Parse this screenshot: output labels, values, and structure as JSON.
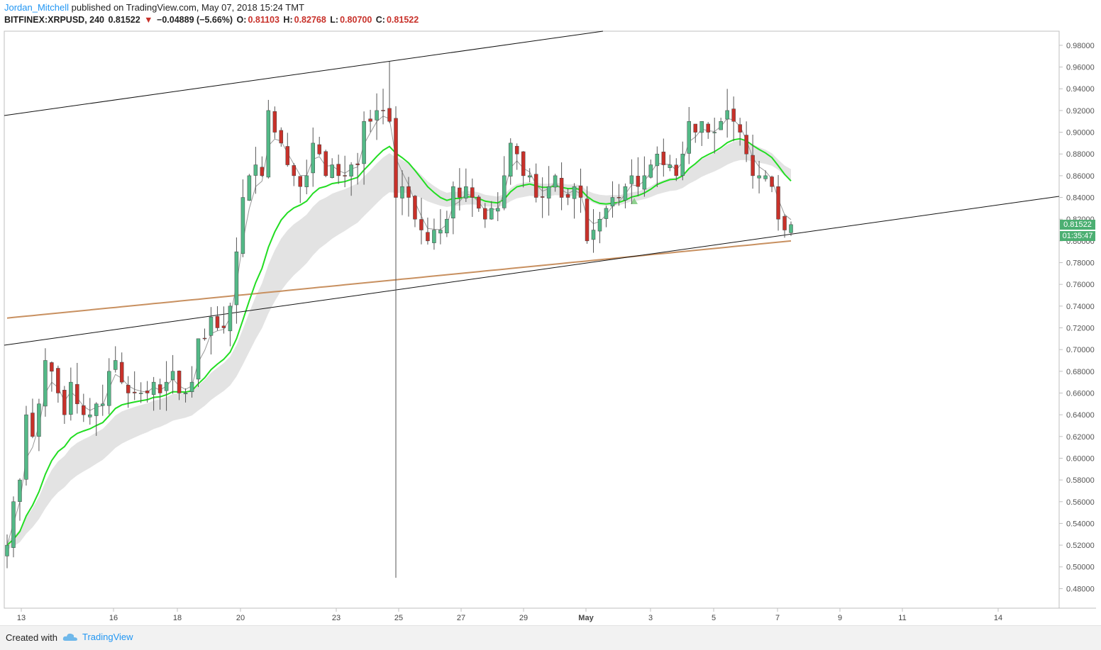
{
  "header": {
    "author": "Jordan_Mitchell",
    "published_text": "published on TradingView.com, May 07, 2018 15:24 TMT",
    "symbol": "BITFINEX:XRPUSD, 240",
    "last": "0.81522",
    "change": "−0.04889 (−5.66%)",
    "open_label": "O:",
    "open": "0.81103",
    "high_label": "H:",
    "high": "0.82768",
    "low_label": "L:",
    "low": "0.80700",
    "close_label": "C:",
    "close": "0.81522"
  },
  "price_tag": "0.81522",
  "time_tag": "01:35:47",
  "footer": {
    "created_with": "Created with",
    "brand": "TradingView"
  },
  "colors": {
    "up": "#53b987",
    "down": "#c8312a",
    "ema_green": "#22dd22",
    "ma_brown": "#c89060",
    "cloud": "#d9d9d9"
  },
  "chart_data": {
    "type": "candlestick",
    "y_ticks": [
      "0.98000",
      "0.96000",
      "0.94000",
      "0.92000",
      "0.90000",
      "0.88000",
      "0.86000",
      "0.84000",
      "0.82000",
      "0.80000",
      "0.78000",
      "0.76000",
      "0.74000",
      "0.72000",
      "0.70000",
      "0.68000",
      "0.66000",
      "0.64000",
      "0.62000",
      "0.60000",
      "0.58000",
      "0.56000",
      "0.54000",
      "0.52000",
      "0.50000",
      "0.48000"
    ],
    "ylim": [
      0.462,
      0.993
    ],
    "x_labels": [
      "13",
      "16",
      "18",
      "20",
      "23",
      "25",
      "27",
      "29",
      "May",
      "3",
      "5",
      "7",
      "9",
      "11",
      "14"
    ],
    "grid": false,
    "series": [
      {
        "name": "price",
        "values": [
          0.52,
          0.56,
          0.58,
          0.64,
          0.62,
          0.65,
          0.69,
          0.68,
          0.66,
          0.64,
          0.67,
          0.65,
          0.64,
          0.64,
          0.65,
          0.65,
          0.68,
          0.69,
          0.67,
          0.66,
          0.66,
          0.66,
          0.66,
          0.67,
          0.66,
          0.67,
          0.68,
          0.66,
          0.66,
          0.67,
          0.71,
          0.71,
          0.73,
          0.72,
          0.72,
          0.74,
          0.79,
          0.84,
          0.86,
          0.87,
          0.86,
          0.92,
          0.9,
          0.89,
          0.87,
          0.86,
          0.85,
          0.86,
          0.89,
          0.88,
          0.86,
          0.87,
          0.86,
          0.86,
          0.87,
          0.87,
          0.91,
          0.91,
          0.92,
          0.92,
          0.91,
          0.84,
          0.85,
          0.84,
          0.82,
          0.81,
          0.8,
          0.81,
          0.81,
          0.82,
          0.85,
          0.84,
          0.85,
          0.84,
          0.83,
          0.82,
          0.83,
          0.83,
          0.86,
          0.89,
          0.88,
          0.86,
          0.86,
          0.84,
          0.84,
          0.85,
          0.86,
          0.84,
          0.84,
          0.85,
          0.84,
          0.8,
          0.81,
          0.82,
          0.83,
          0.84,
          0.84,
          0.85,
          0.86,
          0.85,
          0.86,
          0.87,
          0.88,
          0.87,
          0.87,
          0.86,
          0.88,
          0.91,
          0.9,
          0.91,
          0.9,
          0.9,
          0.91,
          0.92,
          0.91,
          0.9,
          0.88,
          0.86,
          0.86,
          0.86,
          0.85,
          0.82,
          0.81,
          0.815
        ]
      }
    ],
    "reference_lines": [
      "upper channel",
      "lower channel"
    ]
  }
}
